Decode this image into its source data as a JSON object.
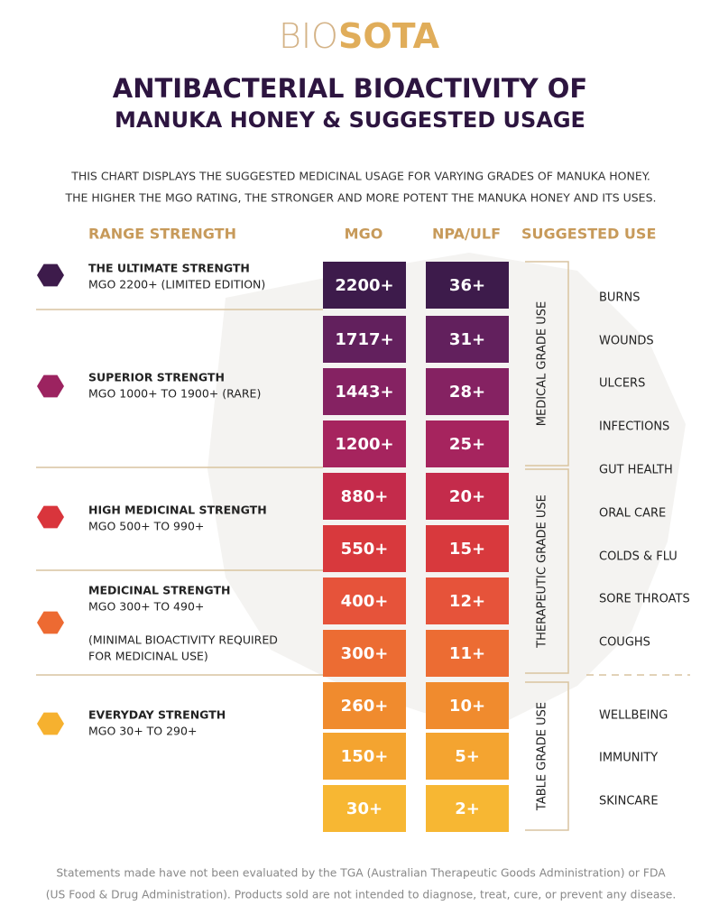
{
  "brand": {
    "prefix": "BIO",
    "suffix": "SOTA"
  },
  "title": [
    "ANTIBACTERIAL BIOACTIVITY OF",
    "MANUKA HONEY & SUGGESTED USAGE"
  ],
  "intro": [
    "THIS CHART DISPLAYS THE SUGGESTED MEDICINAL USAGE FOR VARYING GRADES OF MANUKA HONEY.",
    "THE HIGHER THE MGO RATING, THE STRONGER AND MORE POTENT THE MANUKA HONEY AND ITS USES."
  ],
  "headers": [
    "RANGE STRENGTH",
    "MGO",
    "NPA/ULF",
    "SUGGESTED USE"
  ],
  "grades": [
    {
      "name": "THE ULTIMATE STRENGTH",
      "range": "MGO 2200+ (LIMITED EDITION)",
      "color": "#3d1b4b"
    },
    {
      "name": "SUPERIOR STRENGTH",
      "range": "MGO 1000+ TO 1900+ (RARE)",
      "color": "#9c2360"
    },
    {
      "name": "HIGH MEDICINAL STRENGTH",
      "range": "MGO 500+ TO 990+",
      "color": "#d9353c"
    },
    {
      "name": "MEDICINAL STRENGTH",
      "range": "MGO 300+ TO 490+",
      "note": [
        "(MINIMAL BIOACTIVITY REQUIRED",
        "FOR MEDICINAL USE)"
      ],
      "color": "#ed6a32"
    },
    {
      "name": "EVERYDAY STRENGTH",
      "range": "MGO 30+ TO 290+",
      "color": "#f6b12f"
    }
  ],
  "rows": [
    {
      "mgo": "2200+",
      "npa": "36+",
      "color": "#3d1b4b"
    },
    {
      "mgo": "1717+",
      "npa": "31+",
      "color": "#62205d"
    },
    {
      "mgo": "1443+",
      "npa": "28+",
      "color": "#852262"
    },
    {
      "mgo": "1200+",
      "npa": "25+",
      "color": "#a6245e"
    },
    {
      "mgo": "880+",
      "npa": "20+",
      "color": "#c42b4b"
    },
    {
      "mgo": "550+",
      "npa": "15+",
      "color": "#d8393d"
    },
    {
      "mgo": "400+",
      "npa": "12+",
      "color": "#e6533a"
    },
    {
      "mgo": "300+",
      "npa": "11+",
      "color": "#ec6c33"
    },
    {
      "mgo": "260+",
      "npa": "10+",
      "color": "#f08b2e"
    },
    {
      "mgo": "150+",
      "npa": "5+",
      "color": "#f4a430"
    },
    {
      "mgo": "30+",
      "npa": "2+",
      "color": "#f7b733"
    }
  ],
  "use_groups": [
    {
      "label": "MEDICAL GRADE USE",
      "uses": [
        "BURNS",
        "WOUNDS",
        "ULCERS",
        "INFECTIONS"
      ]
    },
    {
      "label": "THERAPEUTIC GRADE USE",
      "uses": [
        "GUT HEALTH",
        "ORAL CARE",
        "COLDS & FLU",
        "SORE THROATS",
        "COUGHS"
      ]
    },
    {
      "label": "TABLE GRADE USE",
      "uses": [
        "WELLBEING",
        "IMMUNITY",
        "SKINCARE"
      ]
    }
  ],
  "footer": [
    "Statements made have not been evaluated by the TGA (Australian Therapeutic Goods Administration) or FDA",
    "(US Food & Drug Administration). Products sold are not intended to diagnose, treat, cure, or prevent any disease."
  ]
}
